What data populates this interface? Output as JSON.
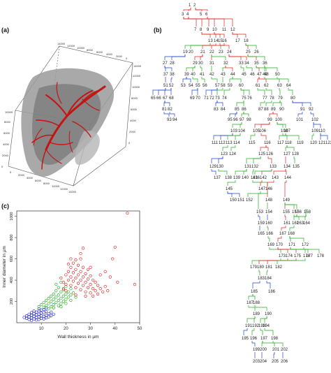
{
  "panels": {
    "a": {
      "label": "(a)"
    },
    "b": {
      "label": "(b)"
    },
    "c": {
      "label": "(c)"
    }
  },
  "volume_plot": {
    "axis_ticks_top": [
      "14000",
      "12000",
      "10000",
      "8000",
      "6000",
      "4000",
      "2000",
      "0"
    ],
    "axis_ticks_right": [
      "0",
      "2000",
      "4000",
      "6000",
      "8000",
      "10000",
      "12000",
      "14000"
    ],
    "axis_ticks_left": [
      "0",
      "2000",
      "4000",
      "6000",
      "8000",
      "10000"
    ],
    "axis_ticks_bottom": [
      "0",
      "2000",
      "4000",
      "6000",
      "8000",
      "10000",
      "12000",
      "14000"
    ],
    "tissue_color": "#8a8a8a",
    "vessel_color": "#cc1111"
  },
  "chart_data": {
    "type": "scatter",
    "xlabel": "Wall thickness in µm",
    "ylabel": "Inner diameter in µm",
    "xlim": [
      0,
      50
    ],
    "ylim": [
      0,
      1050
    ],
    "xticks": [
      10,
      20,
      30,
      40,
      50
    ],
    "yticks": [
      200,
      400,
      600,
      800,
      1000
    ],
    "grid": false,
    "series": [
      {
        "color": "#1a1acc",
        "points": [
          [
            4,
            40
          ],
          [
            5,
            30
          ],
          [
            5,
            55
          ],
          [
            6,
            20
          ],
          [
            6,
            45
          ],
          [
            6,
            70
          ],
          [
            7,
            35
          ],
          [
            7,
            60
          ],
          [
            7,
            85
          ],
          [
            8,
            25
          ],
          [
            8,
            50
          ],
          [
            8,
            75
          ],
          [
            8,
            100
          ],
          [
            9,
            30
          ],
          [
            9,
            55
          ],
          [
            9,
            80
          ],
          [
            9,
            110
          ],
          [
            10,
            40
          ],
          [
            10,
            65
          ],
          [
            10,
            90
          ],
          [
            10,
            120
          ],
          [
            11,
            35
          ],
          [
            11,
            60
          ],
          [
            11,
            95
          ],
          [
            12,
            45
          ],
          [
            12,
            70
          ],
          [
            12,
            105
          ],
          [
            13,
            55
          ],
          [
            13,
            85
          ],
          [
            14,
            65
          ],
          [
            14,
            100
          ],
          [
            15,
            80
          ],
          [
            6,
            95
          ],
          [
            7,
            110
          ],
          [
            9,
            130
          ],
          [
            11,
            125
          ],
          [
            12,
            140
          ],
          [
            5,
            80
          ],
          [
            4,
            65
          ],
          [
            3,
            50
          ]
        ]
      },
      {
        "color": "#11aa11",
        "points": [
          [
            9,
            150
          ],
          [
            10,
            170
          ],
          [
            11,
            190
          ],
          [
            11,
            145
          ],
          [
            12,
            160
          ],
          [
            12,
            210
          ],
          [
            13,
            180
          ],
          [
            13,
            230
          ],
          [
            14,
            150
          ],
          [
            14,
            200
          ],
          [
            14,
            250
          ],
          [
            15,
            170
          ],
          [
            15,
            220
          ],
          [
            15,
            270
          ],
          [
            16,
            190
          ],
          [
            16,
            240
          ],
          [
            16,
            300
          ],
          [
            17,
            160
          ],
          [
            17,
            210
          ],
          [
            17,
            260
          ],
          [
            17,
            330
          ],
          [
            18,
            180
          ],
          [
            18,
            230
          ],
          [
            18,
            290
          ],
          [
            19,
            200
          ],
          [
            19,
            250
          ],
          [
            19,
            310
          ],
          [
            20,
            220
          ],
          [
            20,
            270
          ],
          [
            20,
            340
          ],
          [
            21,
            240
          ],
          [
            21,
            290
          ],
          [
            22,
            260
          ],
          [
            22,
            320
          ],
          [
            23,
            280
          ],
          [
            13,
            130
          ],
          [
            15,
            140
          ],
          [
            18,
            150
          ],
          [
            20,
            180
          ],
          [
            22,
            210
          ],
          [
            24,
            240
          ],
          [
            16,
            360
          ],
          [
            18,
            380
          ]
        ]
      },
      {
        "color": "#dd1111",
        "points": [
          [
            18,
            420
          ],
          [
            19,
            380
          ],
          [
            20,
            450
          ],
          [
            20,
            360
          ],
          [
            21,
            400
          ],
          [
            21,
            480
          ],
          [
            22,
            350
          ],
          [
            22,
            430
          ],
          [
            22,
            520
          ],
          [
            23,
            390
          ],
          [
            23,
            470
          ],
          [
            23,
            560
          ],
          [
            24,
            330
          ],
          [
            24,
            420
          ],
          [
            24,
            500
          ],
          [
            24,
            590
          ],
          [
            25,
            370
          ],
          [
            25,
            450
          ],
          [
            25,
            540
          ],
          [
            26,
            310
          ],
          [
            26,
            400
          ],
          [
            26,
            480
          ],
          [
            26,
            600
          ],
          [
            27,
            350
          ],
          [
            27,
            430
          ],
          [
            27,
            520
          ],
          [
            28,
            290
          ],
          [
            28,
            380
          ],
          [
            28,
            460
          ],
          [
            29,
            330
          ],
          [
            29,
            410
          ],
          [
            29,
            500
          ],
          [
            30,
            280
          ],
          [
            30,
            360
          ],
          [
            30,
            440
          ],
          [
            31,
            320
          ],
          [
            31,
            400
          ],
          [
            32,
            300
          ],
          [
            32,
            380
          ],
          [
            33,
            270
          ],
          [
            33,
            350
          ],
          [
            34,
            320
          ],
          [
            35,
            290
          ],
          [
            36,
            340
          ],
          [
            37,
            300
          ],
          [
            38,
            430
          ],
          [
            39,
            600
          ],
          [
            40,
            710
          ],
          [
            41,
            380
          ],
          [
            45,
            1030
          ],
          [
            48,
            360
          ],
          [
            26,
            650
          ],
          [
            27,
            700
          ],
          [
            22,
            600
          ],
          [
            21,
            550
          ],
          [
            30,
            520
          ],
          [
            34,
            450
          ],
          [
            36,
            480
          ],
          [
            24,
            260
          ],
          [
            28,
            250
          ],
          [
            31,
            250
          ],
          [
            19,
            320
          ],
          [
            20,
            300
          ]
        ]
      }
    ]
  },
  "tree": {
    "nodes": [
      "1",
      "2",
      "3",
      "4",
      "5",
      "6",
      "7",
      "8",
      "9",
      "10",
      "11",
      "12",
      "13",
      "14",
      "15",
      "16",
      "17",
      "18",
      "19",
      "20",
      "21",
      "22",
      "23",
      "24",
      "25",
      "26",
      "27",
      "28",
      "29",
      "30",
      "31",
      "32",
      "33",
      "34",
      "35",
      "36",
      "37",
      "38",
      "39",
      "40",
      "41",
      "42",
      "43",
      "44",
      "45",
      "46",
      "47",
      "48",
      "49",
      "50",
      "51",
      "52",
      "53",
      "54",
      "55",
      "56",
      "57",
      "58",
      "59",
      "60",
      "61",
      "62",
      "63",
      "64",
      "65",
      "66",
      "67",
      "68",
      "69",
      "70",
      "71",
      "72",
      "73",
      "74",
      "75",
      "76",
      "77",
      "78",
      "79",
      "80",
      "81",
      "82",
      "83",
      "84",
      "85",
      "86",
      "87",
      "88",
      "89",
      "90",
      "91",
      "92",
      "93",
      "94",
      "95",
      "96",
      "97",
      "98",
      "99",
      "100",
      "101",
      "102",
      "103",
      "104",
      "105",
      "106",
      "107",
      "108",
      "109",
      "110",
      "111",
      "112",
      "113",
      "114",
      "115",
      "116",
      "117",
      "118",
      "119",
      "120",
      "121",
      "122",
      "123",
      "124",
      "125",
      "126",
      "127",
      "128",
      "129",
      "130",
      "131",
      "132",
      "133",
      "134",
      "135",
      "136",
      "137",
      "138",
      "139",
      "140",
      "141",
      "142",
      "143",
      "144",
      "145",
      "146",
      "147",
      "148",
      "149",
      "150",
      "151",
      "152",
      "153",
      "154",
      "155",
      "156",
      "157",
      "158",
      "159",
      "160",
      "161",
      "162",
      "163",
      "164",
      "165",
      "166",
      "167",
      "168",
      "169",
      "170",
      "171",
      "172",
      "173",
      "174",
      "175",
      "176",
      "177",
      "178",
      "179",
      "180",
      "181",
      "182",
      "183",
      "184",
      "185",
      "186",
      "187",
      "188",
      "189",
      "190",
      "191",
      "192",
      "193",
      "194",
      "195",
      "196",
      "197",
      "198",
      "199",
      "200",
      "201",
      "202",
      "203",
      "204",
      "205",
      "206"
    ],
    "colors": {
      "large": "#dd2222",
      "medium": "#22aa22",
      "small": "#2244cc",
      "text": "#222222"
    }
  }
}
